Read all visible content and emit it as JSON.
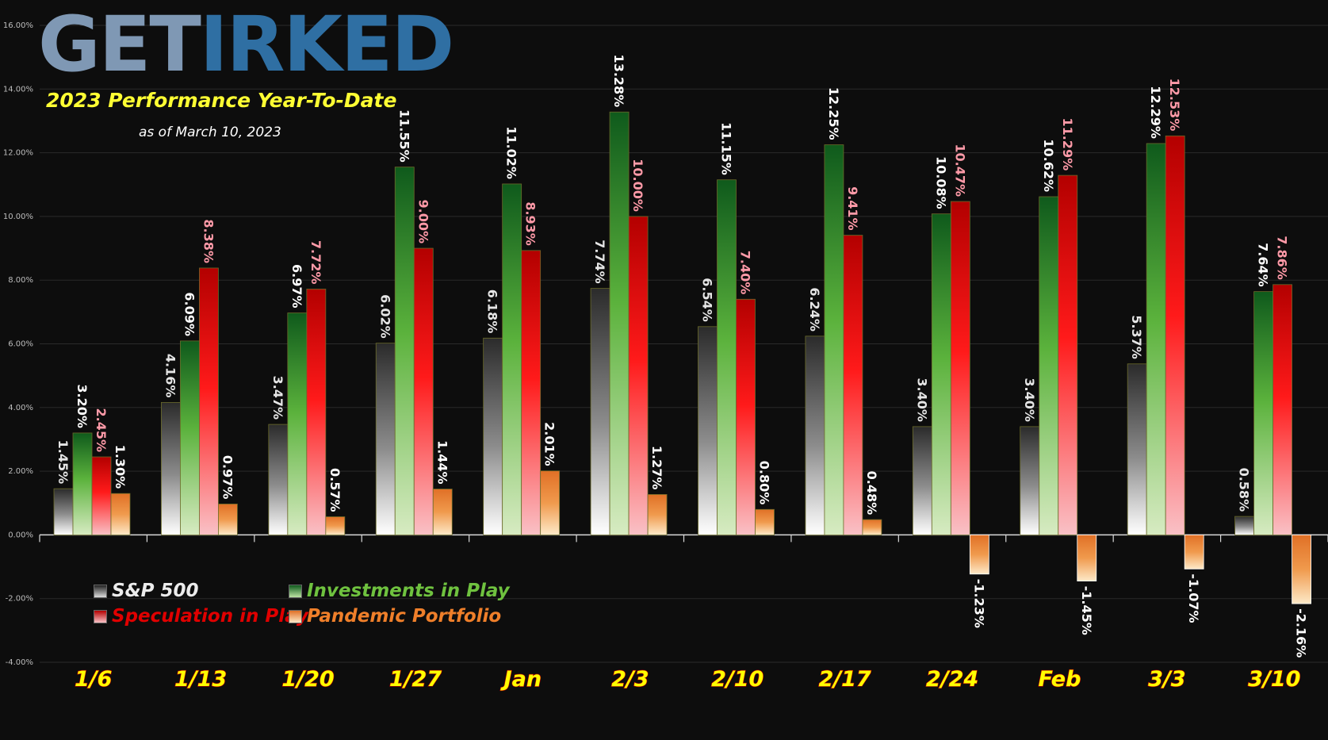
{
  "header": {
    "logo_get": "GET",
    "logo_irked": "IRKED",
    "title": "2023 Performance Year-To-Date",
    "subtitle": "as of March 10, 2023"
  },
  "legend": {
    "sp500": "S&P 500",
    "investments": "Investments in Play",
    "speculation": "Speculation in Play",
    "pandemic": "Pandemic Portfolio"
  },
  "colors": {
    "background": "#0d0d0d",
    "sp500": "#8a8a8a",
    "investments": "#3aa83a",
    "speculation": "#e60000",
    "pandemic": "#ef7f2a",
    "tick_labels": "#ffff00"
  },
  "chart_data": {
    "type": "bar",
    "categories": [
      "1/6",
      "1/13",
      "1/20",
      "1/27",
      "Jan",
      "2/3",
      "2/10",
      "2/17",
      "2/24",
      "Feb",
      "3/3",
      "3/10"
    ],
    "series": [
      {
        "name": "S&P 500",
        "values": [
          1.45,
          4.16,
          3.47,
          6.02,
          6.18,
          7.74,
          6.54,
          6.24,
          3.4,
          3.4,
          5.37,
          0.58
        ],
        "labels": [
          "1.45%",
          "4.16%",
          "3.47%",
          "6.02%",
          "6.18%",
          "7.74%",
          "6.54%",
          "6.24%",
          "3.40%",
          "3.40%",
          "5.37%",
          "0.58%"
        ]
      },
      {
        "name": "Investments in Play",
        "values": [
          3.2,
          6.09,
          6.97,
          11.55,
          11.02,
          13.28,
          11.15,
          12.25,
          10.08,
          10.62,
          12.29,
          7.64
        ],
        "labels": [
          "3.20%",
          "6.09%",
          "6.97%",
          "11.55%",
          "11.02%",
          "13.28%",
          "11.15%",
          "12.25%",
          "10.08%",
          "10.62%",
          "12.29%",
          "7.64%"
        ]
      },
      {
        "name": "Speculation in Play",
        "values": [
          2.45,
          8.38,
          7.72,
          9.0,
          8.93,
          10.0,
          7.4,
          9.41,
          10.47,
          11.29,
          12.53,
          7.86
        ],
        "labels": [
          "2.45%",
          "8.38%",
          "7.72%",
          "9.00%",
          "8.93%",
          "10.00%",
          "7.40%",
          "9.41%",
          "10.47%",
          "11.29%",
          "12.53%",
          "7.86%"
        ]
      },
      {
        "name": "Pandemic Portfolio",
        "values": [
          1.3,
          0.97,
          0.57,
          1.44,
          2.01,
          1.27,
          0.8,
          0.48,
          -1.23,
          -1.45,
          -1.07,
          -2.16
        ],
        "labels": [
          "1.30%",
          "0.97%",
          "0.57%",
          "1.44%",
          "2.01%",
          "1.27%",
          "0.80%",
          "0.48%",
          "-1.23%",
          "-1.45%",
          "-1.07%",
          "-2.16%"
        ]
      }
    ],
    "yticks": [
      -4,
      -2,
      0,
      2,
      4,
      6,
      8,
      10,
      12,
      14,
      16
    ],
    "ytick_labels": [
      "-4.00%",
      "-2.00%",
      "0.00%",
      "2.00%",
      "4.00%",
      "6.00%",
      "8.00%",
      "10.00%",
      "12.00%",
      "14.00%",
      "16.00%"
    ],
    "ylim": [
      -4,
      16
    ],
    "grid": true,
    "legend_position": "bottom-left"
  }
}
